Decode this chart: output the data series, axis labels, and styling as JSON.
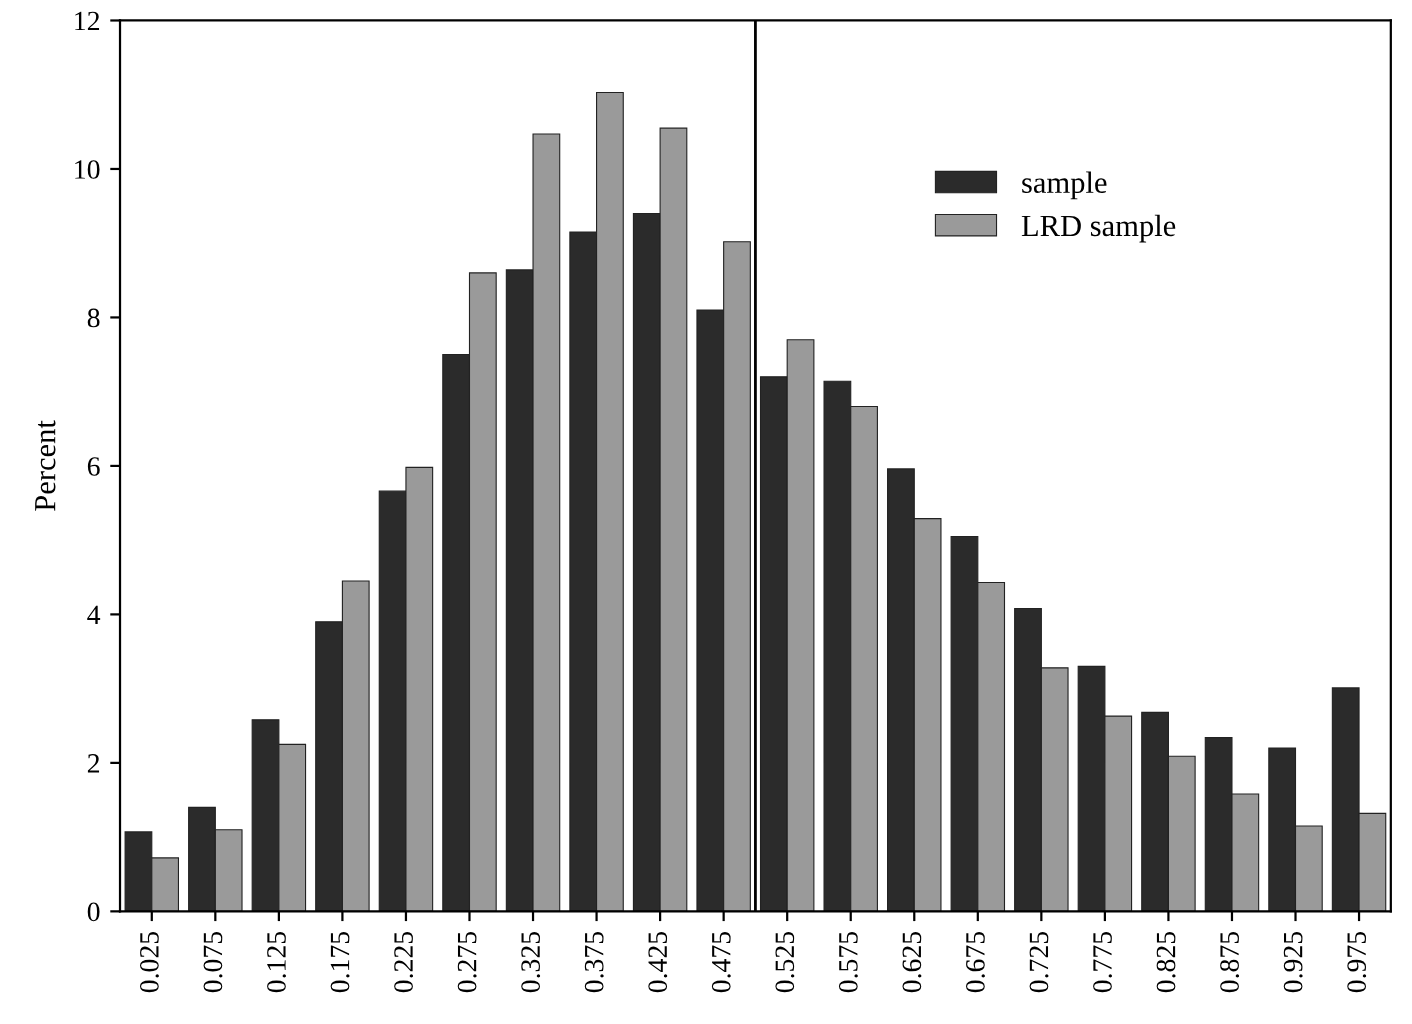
{
  "chart_data": {
    "type": "bar",
    "ylabel": "Percent",
    "x": [
      0.025,
      0.075,
      0.125,
      0.175,
      0.225,
      0.275,
      0.325,
      0.375,
      0.425,
      0.475,
      0.525,
      0.575,
      0.625,
      0.675,
      0.725,
      0.775,
      0.825,
      0.875,
      0.925,
      0.975
    ],
    "series": [
      {
        "name": "sample",
        "color": "#2b2b2b",
        "values": [
          1.07,
          1.4,
          2.58,
          3.9,
          5.66,
          7.5,
          8.64,
          9.15,
          9.4,
          8.1,
          7.2,
          7.14,
          5.96,
          5.05,
          4.08,
          3.3,
          2.68,
          2.34,
          2.2,
          3.01
        ]
      },
      {
        "name": "LRD sample",
        "color": "#9a9a9a",
        "values": [
          0.72,
          1.1,
          2.25,
          4.45,
          5.98,
          8.6,
          10.47,
          11.03,
          10.55,
          9.02,
          7.7,
          6.8,
          5.29,
          4.43,
          3.28,
          2.63,
          2.09,
          1.58,
          1.15,
          1.32
        ]
      }
    ],
    "xlim": [
      0,
      1
    ],
    "xticks": [
      0.025,
      0.075,
      0.125,
      0.175,
      0.225,
      0.275,
      0.325,
      0.375,
      0.425,
      0.475,
      0.525,
      0.575,
      0.625,
      0.675,
      0.725,
      0.775,
      0.825,
      0.875,
      0.925,
      0.975
    ],
    "ylim": [
      0,
      12
    ],
    "yticks": [
      0,
      2,
      4,
      6,
      8,
      10,
      12
    ],
    "ref_lines": [
      {
        "axis": "x",
        "value": 0.5,
        "color": "#000000"
      }
    ],
    "legend": "top right",
    "grid": false
  }
}
